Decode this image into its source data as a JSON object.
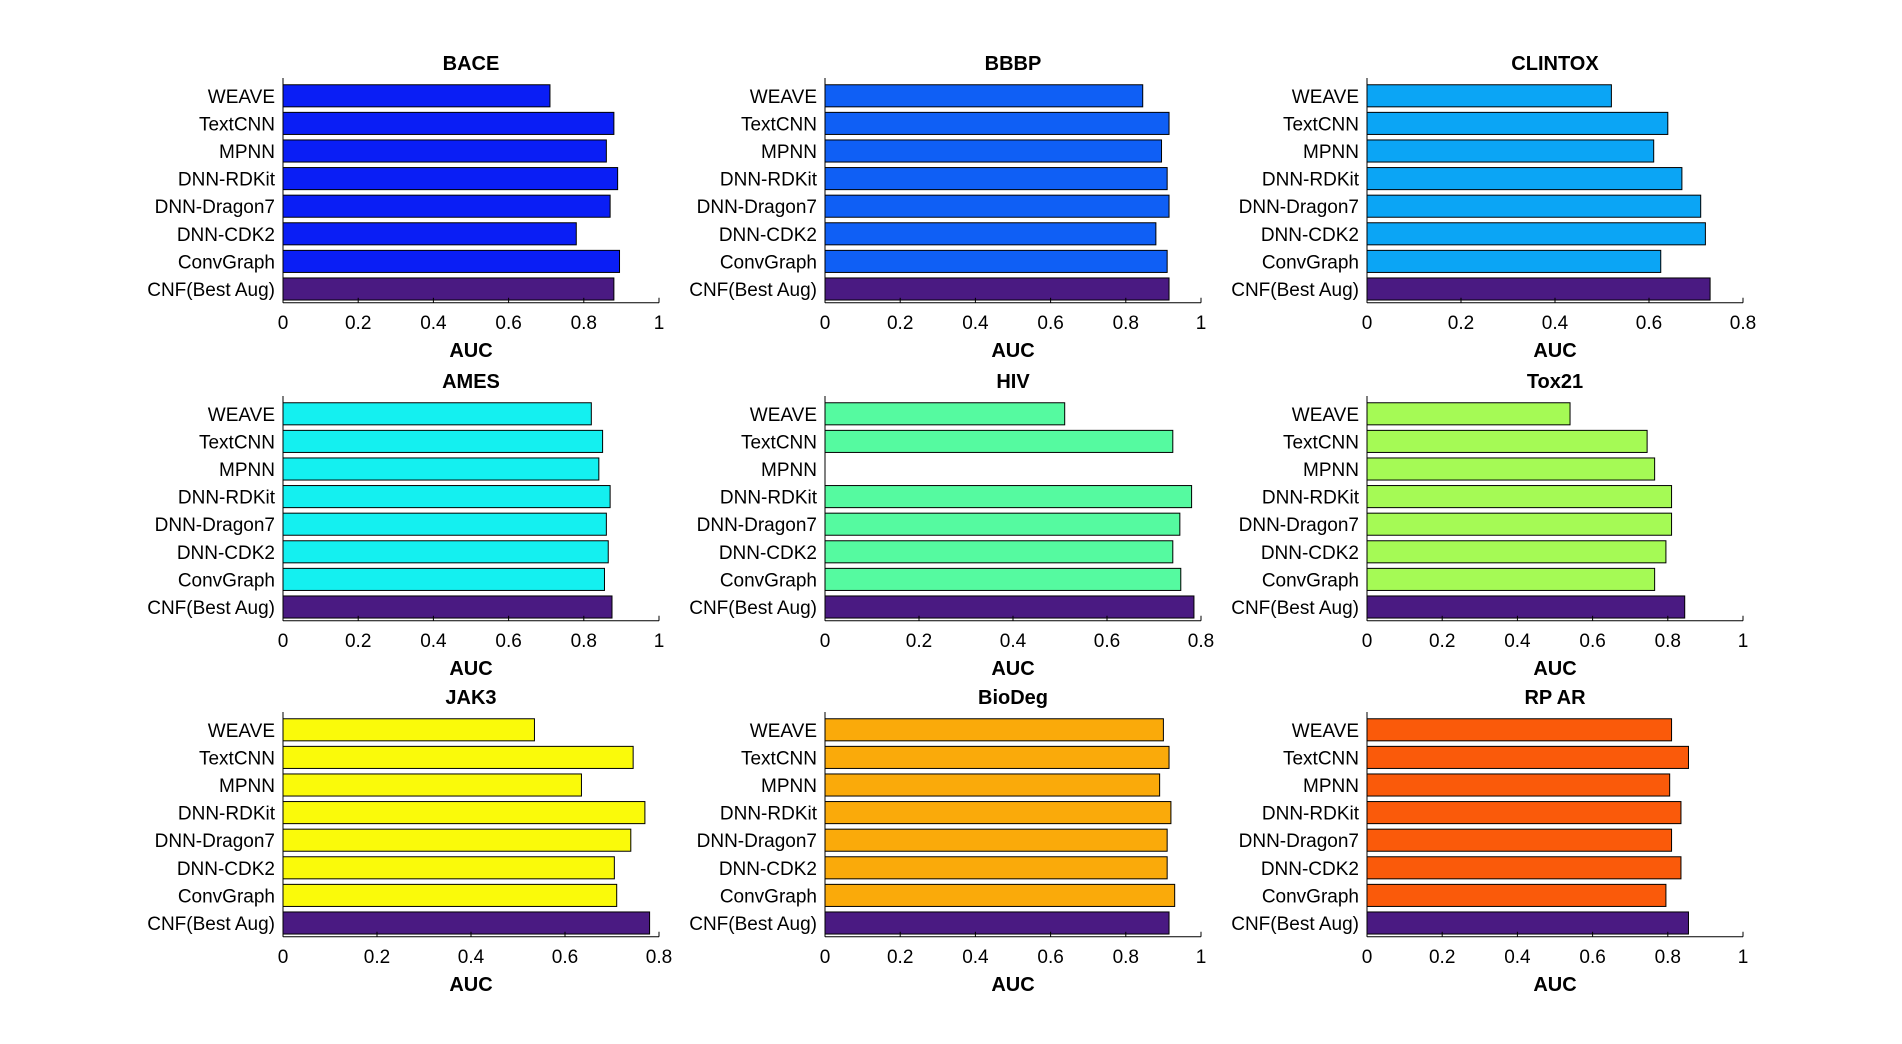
{
  "chart_data": [
    {
      "type": "bar",
      "orientation": "horizontal",
      "title": "BACE",
      "xlabel": "AUC",
      "ylabel": "",
      "xlim": [
        0,
        1
      ],
      "xticks": [
        0,
        0.2,
        0.4,
        0.6,
        0.8,
        1
      ],
      "xtick_labels": [
        "0",
        "0.2",
        "0.4",
        "0.6",
        "0.8",
        "1"
      ],
      "color": "#0A1EF5",
      "categories": [
        "WEAVE",
        "TextCNN",
        "MPNN",
        "DNN-RDKit",
        "DNN-Dragon7",
        "DNN-CDK2",
        "ConvGraph",
        "CNF(Best Aug)"
      ],
      "values": [
        0.71,
        0.88,
        0.86,
        0.89,
        0.87,
        0.78,
        0.895,
        0.88
      ]
    },
    {
      "type": "bar",
      "orientation": "horizontal",
      "title": "BBBP",
      "xlabel": "AUC",
      "ylabel": "",
      "xlim": [
        0,
        1
      ],
      "xticks": [
        0,
        0.2,
        0.4,
        0.6,
        0.8,
        1
      ],
      "xtick_labels": [
        "0",
        "0.2",
        "0.4",
        "0.6",
        "0.8",
        "1"
      ],
      "color": "#0F5FF5",
      "categories": [
        "WEAVE",
        "TextCNN",
        "MPNN",
        "DNN-RDKit",
        "DNN-Dragon7",
        "DNN-CDK2",
        "ConvGraph",
        "CNF(Best Aug)"
      ],
      "values": [
        0.845,
        0.915,
        0.895,
        0.91,
        0.915,
        0.88,
        0.91,
        0.915
      ]
    },
    {
      "type": "bar",
      "orientation": "horizontal",
      "title": "CLINTOX",
      "xlabel": "AUC",
      "ylabel": "",
      "xlim": [
        0,
        0.8
      ],
      "xticks": [
        0,
        0.2,
        0.4,
        0.6,
        0.8
      ],
      "xtick_labels": [
        "0",
        "0.2",
        "0.4",
        "0.6",
        "0.8"
      ],
      "color": "#0BA5F5",
      "categories": [
        "WEAVE",
        "TextCNN",
        "MPNN",
        "DNN-RDKit",
        "DNN-Dragon7",
        "DNN-CDK2",
        "ConvGraph",
        "CNF(Best Aug)"
      ],
      "values": [
        0.52,
        0.64,
        0.61,
        0.67,
        0.71,
        0.72,
        0.625,
        0.73
      ]
    },
    {
      "type": "bar",
      "orientation": "horizontal",
      "title": "AMES",
      "xlabel": "AUC",
      "ylabel": "",
      "xlim": [
        0,
        1
      ],
      "xticks": [
        0,
        0.2,
        0.4,
        0.6,
        0.8,
        1
      ],
      "xtick_labels": [
        "0",
        "0.2",
        "0.4",
        "0.6",
        "0.8",
        "1"
      ],
      "color": "#14F0F0",
      "categories": [
        "WEAVE",
        "TextCNN",
        "MPNN",
        "DNN-RDKit",
        "DNN-Dragon7",
        "DNN-CDK2",
        "ConvGraph",
        "CNF(Best Aug)"
      ],
      "values": [
        0.82,
        0.85,
        0.84,
        0.87,
        0.86,
        0.865,
        0.855,
        0.875
      ]
    },
    {
      "type": "bar",
      "orientation": "horizontal",
      "title": "HIV",
      "xlabel": "AUC",
      "ylabel": "",
      "xlim": [
        0,
        0.8
      ],
      "xticks": [
        0,
        0.2,
        0.4,
        0.6,
        0.8
      ],
      "xtick_labels": [
        "0",
        "0.2",
        "0.4",
        "0.6",
        "0.8"
      ],
      "color": "#55FAA0",
      "categories": [
        "WEAVE",
        "TextCNN",
        "MPNN",
        "DNN-RDKit",
        "DNN-Dragon7",
        "DNN-CDK2",
        "ConvGraph",
        "CNF(Best Aug)"
      ],
      "values": [
        0.51,
        0.74,
        0.0,
        0.78,
        0.755,
        0.74,
        0.757,
        0.785
      ]
    },
    {
      "type": "bar",
      "orientation": "horizontal",
      "title": "Tox21",
      "xlabel": "AUC",
      "ylabel": "",
      "xlim": [
        0,
        1
      ],
      "xticks": [
        0,
        0.2,
        0.4,
        0.6,
        0.8,
        1
      ],
      "xtick_labels": [
        "0",
        "0.2",
        "0.4",
        "0.6",
        "0.8",
        "1"
      ],
      "color": "#A5FA55",
      "categories": [
        "WEAVE",
        "TextCNN",
        "MPNN",
        "DNN-RDKit",
        "DNN-Dragon7",
        "DNN-CDK2",
        "ConvGraph",
        "CNF(Best Aug)"
      ],
      "values": [
        0.54,
        0.745,
        0.765,
        0.81,
        0.81,
        0.795,
        0.765,
        0.845
      ]
    },
    {
      "type": "bar",
      "orientation": "horizontal",
      "title": "JAK3",
      "xlabel": "AUC",
      "ylabel": "",
      "xlim": [
        0,
        0.8
      ],
      "xticks": [
        0,
        0.2,
        0.4,
        0.6,
        0.8
      ],
      "xtick_labels": [
        "0",
        "0.2",
        "0.4",
        "0.6",
        "0.8"
      ],
      "color": "#FAFA0A",
      "categories": [
        "WEAVE",
        "TextCNN",
        "MPNN",
        "DNN-RDKit",
        "DNN-Dragon7",
        "DNN-CDK2",
        "ConvGraph",
        "CNF(Best Aug)"
      ],
      "values": [
        0.535,
        0.745,
        0.635,
        0.77,
        0.74,
        0.705,
        0.71,
        0.78
      ]
    },
    {
      "type": "bar",
      "orientation": "horizontal",
      "title": "BioDeg",
      "xlabel": "AUC",
      "ylabel": "",
      "xlim": [
        0,
        1
      ],
      "xticks": [
        0,
        0.2,
        0.4,
        0.6,
        0.8,
        1
      ],
      "xtick_labels": [
        "0",
        "0.2",
        "0.4",
        "0.6",
        "0.8",
        "1"
      ],
      "color": "#FAAA0A",
      "categories": [
        "WEAVE",
        "TextCNN",
        "MPNN",
        "DNN-RDKit",
        "DNN-Dragon7",
        "DNN-CDK2",
        "ConvGraph",
        "CNF(Best Aug)"
      ],
      "values": [
        0.9,
        0.915,
        0.89,
        0.92,
        0.91,
        0.91,
        0.93,
        0.915
      ]
    },
    {
      "type": "bar",
      "orientation": "horizontal",
      "title": "RP AR",
      "xlabel": "AUC",
      "ylabel": "",
      "xlim": [
        0,
        1
      ],
      "xticks": [
        0,
        0.2,
        0.4,
        0.6,
        0.8,
        1
      ],
      "xtick_labels": [
        "0",
        "0.2",
        "0.4",
        "0.6",
        "0.8",
        "1"
      ],
      "color": "#FA5A0A",
      "categories": [
        "WEAVE",
        "TextCNN",
        "MPNN",
        "DNN-RDKit",
        "DNN-Dragon7",
        "DNN-CDK2",
        "ConvGraph",
        "CNF(Best Aug)"
      ],
      "values": [
        0.81,
        0.855,
        0.805,
        0.835,
        0.81,
        0.835,
        0.795,
        0.855
      ]
    }
  ],
  "highlight_category": "CNF(Best Aug)",
  "highlight_color": "#4A1A82"
}
